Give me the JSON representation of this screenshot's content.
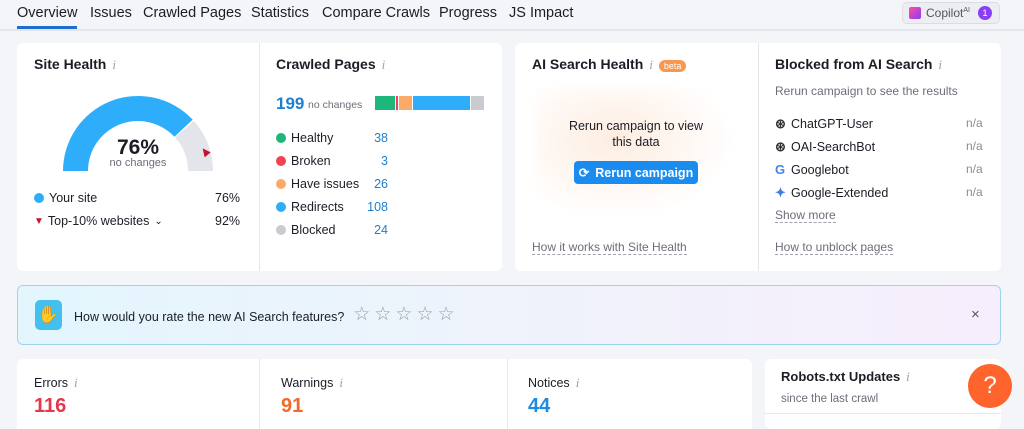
{
  "tabs": [
    "Overview",
    "Issues",
    "Crawled Pages",
    "Statistics",
    "Compare Crawls",
    "Progress",
    "JS Impact"
  ],
  "copilot": {
    "label": "Copilot",
    "sup": "AI",
    "badge": "1"
  },
  "site_health": {
    "title": "Site Health",
    "value_label": "76%",
    "sub": "no changes",
    "value": 76,
    "top10": 92,
    "your_site_label": "Your site",
    "your_site_value": "76%",
    "top10_label": "Top-10% websites",
    "top10_value": "92%",
    "colors": {
      "main": "#2eadfa",
      "rest": "#e4e5ea",
      "marker": "#c4122f"
    }
  },
  "crawled": {
    "title": "Crawled Pages",
    "total": "199",
    "sub": "no changes",
    "items": [
      {
        "label": "Healthy",
        "value": "38",
        "color": "#1fb67b"
      },
      {
        "label": "Broken",
        "value": "3",
        "color": "#f2414f"
      },
      {
        "label": "Have issues",
        "value": "26",
        "color": "#fbaa6a"
      },
      {
        "label": "Redirects",
        "value": "108",
        "color": "#2eadfa"
      },
      {
        "label": "Blocked",
        "value": "24",
        "color": "#c9cbd1"
      }
    ]
  },
  "ai_health": {
    "title": "AI Search Health",
    "badge": "beta",
    "message": "Rerun campaign to view this data",
    "button": "Rerun campaign",
    "link": "How it works with Site Health"
  },
  "blocked": {
    "title": "Blocked from AI Search",
    "sub": "Rerun campaign to see the results",
    "items": [
      {
        "label": "ChatGPT-User",
        "value": "n/a",
        "icon": "openai-icon"
      },
      {
        "label": "OAI-SearchBot",
        "value": "n/a",
        "icon": "openai-icon"
      },
      {
        "label": "Googlebot",
        "value": "n/a",
        "icon": "google-icon"
      },
      {
        "label": "Google-Extended",
        "value": "n/a",
        "icon": "gemini-icon"
      }
    ],
    "show_more": "Show more",
    "link": "How to unblock pages"
  },
  "banner": {
    "question": "How would you rate the new AI Search features?",
    "stars": 5,
    "close": "×"
  },
  "stats": [
    {
      "label": "Errors",
      "value": "116",
      "color": "#e5374a"
    },
    {
      "label": "Warnings",
      "value": "91",
      "color": "#f06a2a"
    },
    {
      "label": "Notices",
      "value": "44",
      "color": "#1e8ae0"
    }
  ],
  "robots": {
    "title": "Robots.txt Updates",
    "sub": "since the last crawl"
  },
  "help": "?"
}
